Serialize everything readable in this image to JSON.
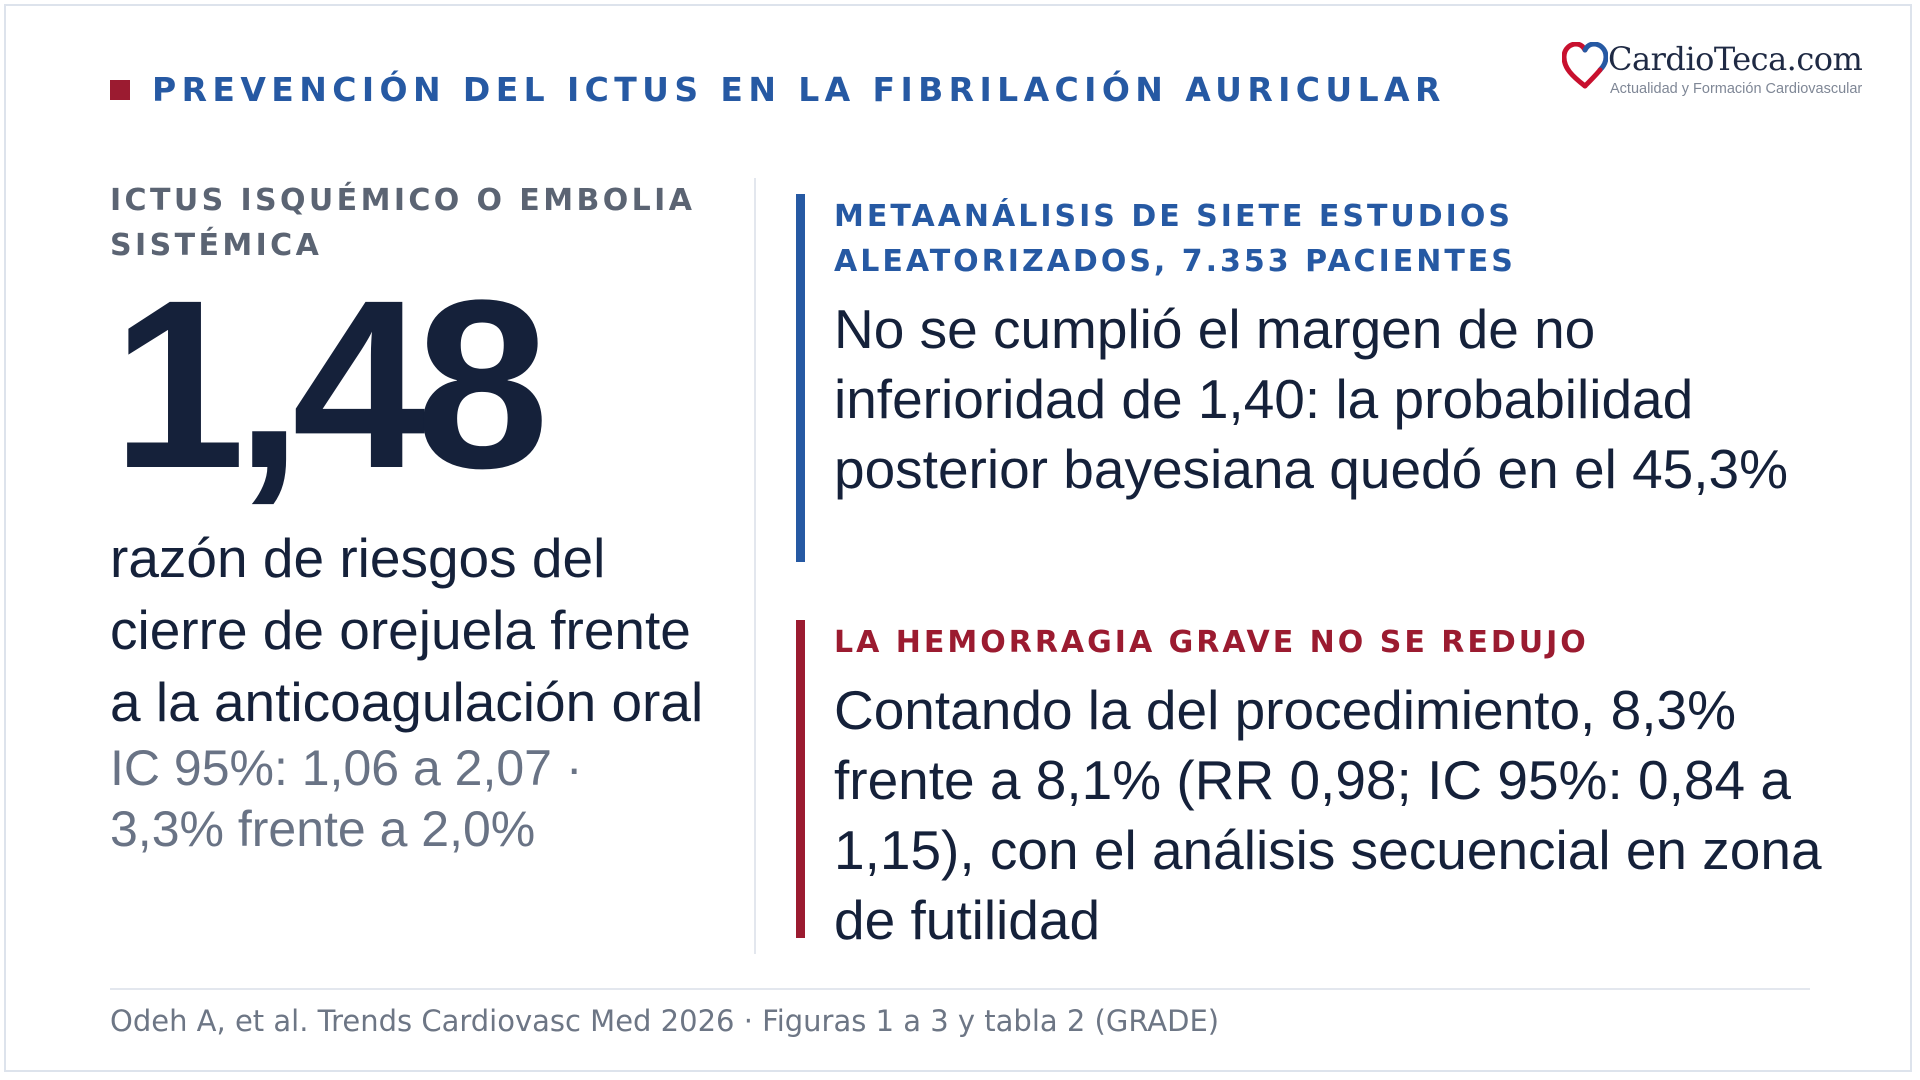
{
  "header": {
    "title": "PREVENCIÓN DEL ICTUS EN LA FIBRILACIÓN AURICULAR"
  },
  "logo": {
    "name": "CardioTeca.com",
    "tagline": "Actualidad y Formación Cardiovascular",
    "colors": {
      "red": "#c8102e",
      "blue": "#2659a3"
    }
  },
  "left": {
    "kicker": "ICTUS ISQUÉMICO O EMBOLIA SISTÉMICA",
    "value": "1,48",
    "description": "razón de riesgos del cierre de orejuela frente a la anticoagulación oral",
    "ci": "IC 95%: 1,06 a 2,07 · 3,3% frente a 2,0%"
  },
  "blocks": [
    {
      "kicker": "METAANÁLISIS DE SIETE ESTUDIOS ALEATORIZADOS, 7.353 PACIENTES",
      "body": "No se cumplió el margen de no inferioridad de 1,40: la probabilidad posterior bayesiana quedó en el 45,3%",
      "accent": "#2659a3"
    },
    {
      "kicker": "LA HEMORRAGIA GRAVE NO SE REDUJO",
      "body": "Contando la del procedimiento, 8,3% frente a 8,1% (RR 0,98; IC 95%: 0,84 a 1,15), con el análisis secuencial en zona de futilidad",
      "accent": "#9b1b30"
    }
  ],
  "footer": {
    "citation": "Odeh A, et al. Trends Cardiovasc Med 2026 · Figuras 1 a 3 y tabla 2 (GRADE)"
  }
}
